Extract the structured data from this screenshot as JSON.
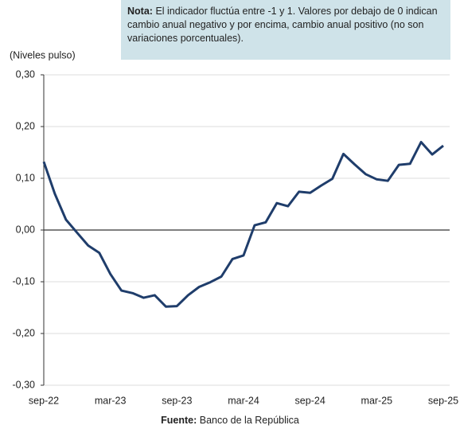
{
  "chart_data": {
    "type": "line",
    "note": {
      "label": "Nota:",
      "text": "El indicador fluctúa entre -1 y 1. Valores por debajo de 0 indican cambio anual negativo y por encima, cambio anual positivo (no son variaciones porcentuales)."
    },
    "y_axis_label": "(Niveles pulso)",
    "source": {
      "label": "Fuente:",
      "text": "Banco de la República"
    },
    "categories": [
      "sep-22",
      null,
      null,
      null,
      null,
      null,
      "mar-23",
      null,
      null,
      null,
      null,
      null,
      "sep-23",
      null,
      null,
      null,
      null,
      null,
      "mar-24",
      null,
      null,
      null,
      null,
      null,
      "sep-24",
      null,
      null,
      null,
      null,
      null,
      "mar-25",
      null,
      null,
      null,
      null,
      null,
      "sep-25"
    ],
    "series": [
      {
        "name": "Niveles pulso",
        "color": "#1f3d6b",
        "values": [
          0.132,
          0.07,
          0.02,
          -0.005,
          -0.03,
          -0.044,
          -0.085,
          -0.117,
          -0.122,
          -0.131,
          -0.126,
          -0.148,
          -0.147,
          -0.126,
          -0.11,
          -0.101,
          -0.09,
          -0.056,
          -0.049,
          0.009,
          0.015,
          0.052,
          0.046,
          0.074,
          0.072,
          0.086,
          0.099,
          0.147,
          0.127,
          0.108,
          0.098,
          0.095,
          0.126,
          0.128,
          0.17,
          0.146,
          0.163
        ]
      }
    ],
    "ylim": [
      -0.3,
      0.3
    ],
    "yticks": [
      {
        "value": -0.3,
        "label": "-0,30"
      },
      {
        "value": -0.2,
        "label": "-0,20"
      },
      {
        "value": -0.1,
        "label": "-0,10"
      },
      {
        "value": 0,
        "label": "0,00"
      },
      {
        "value": 0.1,
        "label": "0,10"
      },
      {
        "value": 0.2,
        "label": "0,20"
      },
      {
        "value": 0.3,
        "label": "0,30"
      }
    ],
    "grid": true
  }
}
